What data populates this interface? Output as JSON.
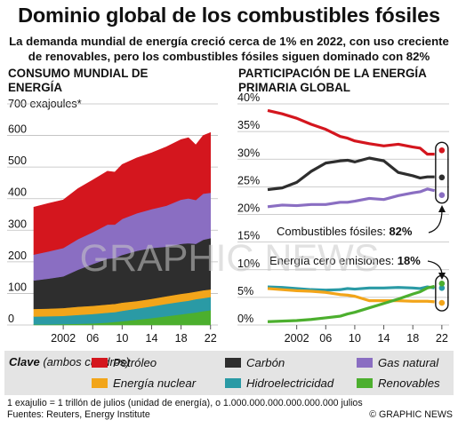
{
  "title": "Dominio global de los combustibles fósiles",
  "subtitle": "La demanda mundial de energía creció cerca de 1% en 2022, con uso creciente de renovables, pero los combustibles fósiles siguen dominado con 82%",
  "watermark": "GRAPHIC NEWS",
  "key": {
    "label": "Clave",
    "label_sub": "(ambos cuadros)",
    "items": [
      {
        "id": "petroleo",
        "label": "Petróleo",
        "color": "#d4161e"
      },
      {
        "id": "carbon",
        "label": "Carbón",
        "color": "#2e2e2e"
      },
      {
        "id": "gas",
        "label": "Gas natural",
        "color": "#8a6ec2"
      },
      {
        "id": "nuclear",
        "label": "Energía nuclear",
        "color": "#f2a51a"
      },
      {
        "id": "hidro",
        "label": "Hidroelectricidad",
        "color": "#2a9aa5"
      },
      {
        "id": "renov",
        "label": "Renovables",
        "color": "#4caf2e"
      }
    ]
  },
  "footnote": {
    "line1": "1 exajulio = 1 trillón de julios (unidad de energía), o 1.000.000.000.000.000.000 julios",
    "line2": "Fuentes: Reuters, Energy Institute"
  },
  "copyright": "© GRAPHIC NEWS",
  "chart_data": [
    {
      "type": "area",
      "title": "CONSUMO MUNDIAL DE\nENERGÍA",
      "ylabel": "exajoules*",
      "ylim": [
        0,
        700
      ],
      "yticks": [
        0,
        100,
        200,
        300,
        400,
        500,
        600,
        700
      ],
      "xlim": [
        1998,
        2023
      ],
      "xticks": [
        {
          "value": 2002,
          "label": "2002"
        },
        {
          "value": 2006,
          "label": "06"
        },
        {
          "value": 2010,
          "label": "10"
        },
        {
          "value": 2014,
          "label": "14"
        },
        {
          "value": 2018,
          "label": "18"
        },
        {
          "value": 2022,
          "label": "22"
        }
      ],
      "x": [
        1998,
        2000,
        2002,
        2004,
        2006,
        2008,
        2009,
        2010,
        2012,
        2014,
        2016,
        2018,
        2019,
        2020,
        2021,
        2022
      ],
      "series": [
        {
          "name": "Renovables",
          "color": "#4caf2e",
          "values": [
            2,
            2,
            3,
            4,
            5,
            8,
            10,
            12,
            17,
            22,
            28,
            34,
            37,
            40,
            44,
            47
          ]
        },
        {
          "name": "Hidroelectricidad",
          "color": "#2a9aa5",
          "values": [
            25,
            26,
            26,
            28,
            30,
            31,
            31,
            33,
            35,
            37,
            39,
            40,
            40,
            42,
            41,
            42
          ]
        },
        {
          "name": "Energía nuclear",
          "color": "#f2a51a",
          "values": [
            24,
            24,
            25,
            26,
            26,
            26,
            26,
            26,
            24,
            24,
            24,
            25,
            25,
            24,
            25,
            24
          ]
        },
        {
          "name": "Carbón",
          "color": "#2e2e2e",
          "values": [
            90,
            95,
            100,
            117,
            132,
            145,
            145,
            151,
            159,
            161,
            157,
            158,
            157,
            151,
            160,
            162
          ]
        },
        {
          "name": "Gas natural",
          "color": "#8a6ec2",
          "values": [
            82,
            86,
            90,
            97,
            101,
            108,
            106,
            114,
            119,
            123,
            130,
            140,
            142,
            139,
            146,
            144
          ]
        },
        {
          "name": "Petróleo",
          "color": "#d4161e",
          "values": [
            150,
            152,
            152,
            160,
            165,
            169,
            166,
            172,
            175,
            178,
            186,
            190,
            192,
            174,
            184,
            190
          ]
        }
      ]
    },
    {
      "type": "line",
      "title": "PARTICIPACIÓN DE LA ENERGÍA\nPRIMARIA GLOBAL",
      "ylim": [
        0,
        40
      ],
      "yticks": [
        0,
        5,
        10,
        15,
        20,
        25,
        30,
        35,
        40
      ],
      "ytick_labels": [
        "0%",
        "5%",
        "10%",
        "15%",
        "20%",
        "25%",
        "30%",
        "35%",
        "40%"
      ],
      "xlim": [
        1998,
        2023
      ],
      "xticks": [
        {
          "value": 2002,
          "label": "2002"
        },
        {
          "value": 2006,
          "label": "06"
        },
        {
          "value": 2010,
          "label": "10"
        },
        {
          "value": 2014,
          "label": "14"
        },
        {
          "value": 2018,
          "label": "18"
        },
        {
          "value": 2022,
          "label": "22"
        }
      ],
      "x": [
        1998,
        2000,
        2002,
        2004,
        2006,
        2008,
        2009,
        2010,
        2012,
        2014,
        2016,
        2018,
        2019,
        2020,
        2021,
        2022
      ],
      "series": [
        {
          "name": "Petróleo",
          "color": "#d4161e",
          "values": [
            38.8,
            38.2,
            37.4,
            36.3,
            35.4,
            34.1,
            33.8,
            33.3,
            32.8,
            32.4,
            32.7,
            32.2,
            32.0,
            30.9,
            30.9,
            31.6
          ]
        },
        {
          "name": "Carbón",
          "color": "#2e2e2e",
          "values": [
            24.5,
            24.8,
            25.8,
            27.8,
            29.3,
            29.7,
            29.8,
            29.5,
            30.2,
            29.7,
            27.6,
            27.0,
            26.6,
            26.8,
            26.8,
            26.7
          ]
        },
        {
          "name": "Gas natural",
          "color": "#8a6ec2",
          "values": [
            21.4,
            21.7,
            21.6,
            21.8,
            21.8,
            22.2,
            22.2,
            22.4,
            22.9,
            22.7,
            23.4,
            23.9,
            24.1,
            24.6,
            24.3,
            23.5
          ]
        },
        {
          "name": "Hidroelectricidad",
          "color": "#2a9aa5",
          "values": [
            6.9,
            6.8,
            6.6,
            6.4,
            6.3,
            6.4,
            6.6,
            6.5,
            6.7,
            6.7,
            6.8,
            6.7,
            6.6,
            6.9,
            6.7,
            6.7
          ]
        },
        {
          "name": "Energía nuclear",
          "color": "#f2a51a",
          "values": [
            6.6,
            6.4,
            6.2,
            6.1,
            5.9,
            5.5,
            5.4,
            5.2,
            4.4,
            4.4,
            4.4,
            4.3,
            4.3,
            4.3,
            4.2,
            4.0
          ]
        },
        {
          "name": "Renovables",
          "color": "#4caf2e",
          "values": [
            0.6,
            0.7,
            0.8,
            1.0,
            1.3,
            1.6,
            2.0,
            2.3,
            3.1,
            3.9,
            4.7,
            5.6,
            6.0,
            6.7,
            7.0,
            7.5
          ]
        }
      ],
      "annotations": [
        {
          "label": "Combustibles fósiles:",
          "value": "82%"
        },
        {
          "label": "Energía cero emisiones:",
          "value": "18%"
        }
      ]
    }
  ]
}
